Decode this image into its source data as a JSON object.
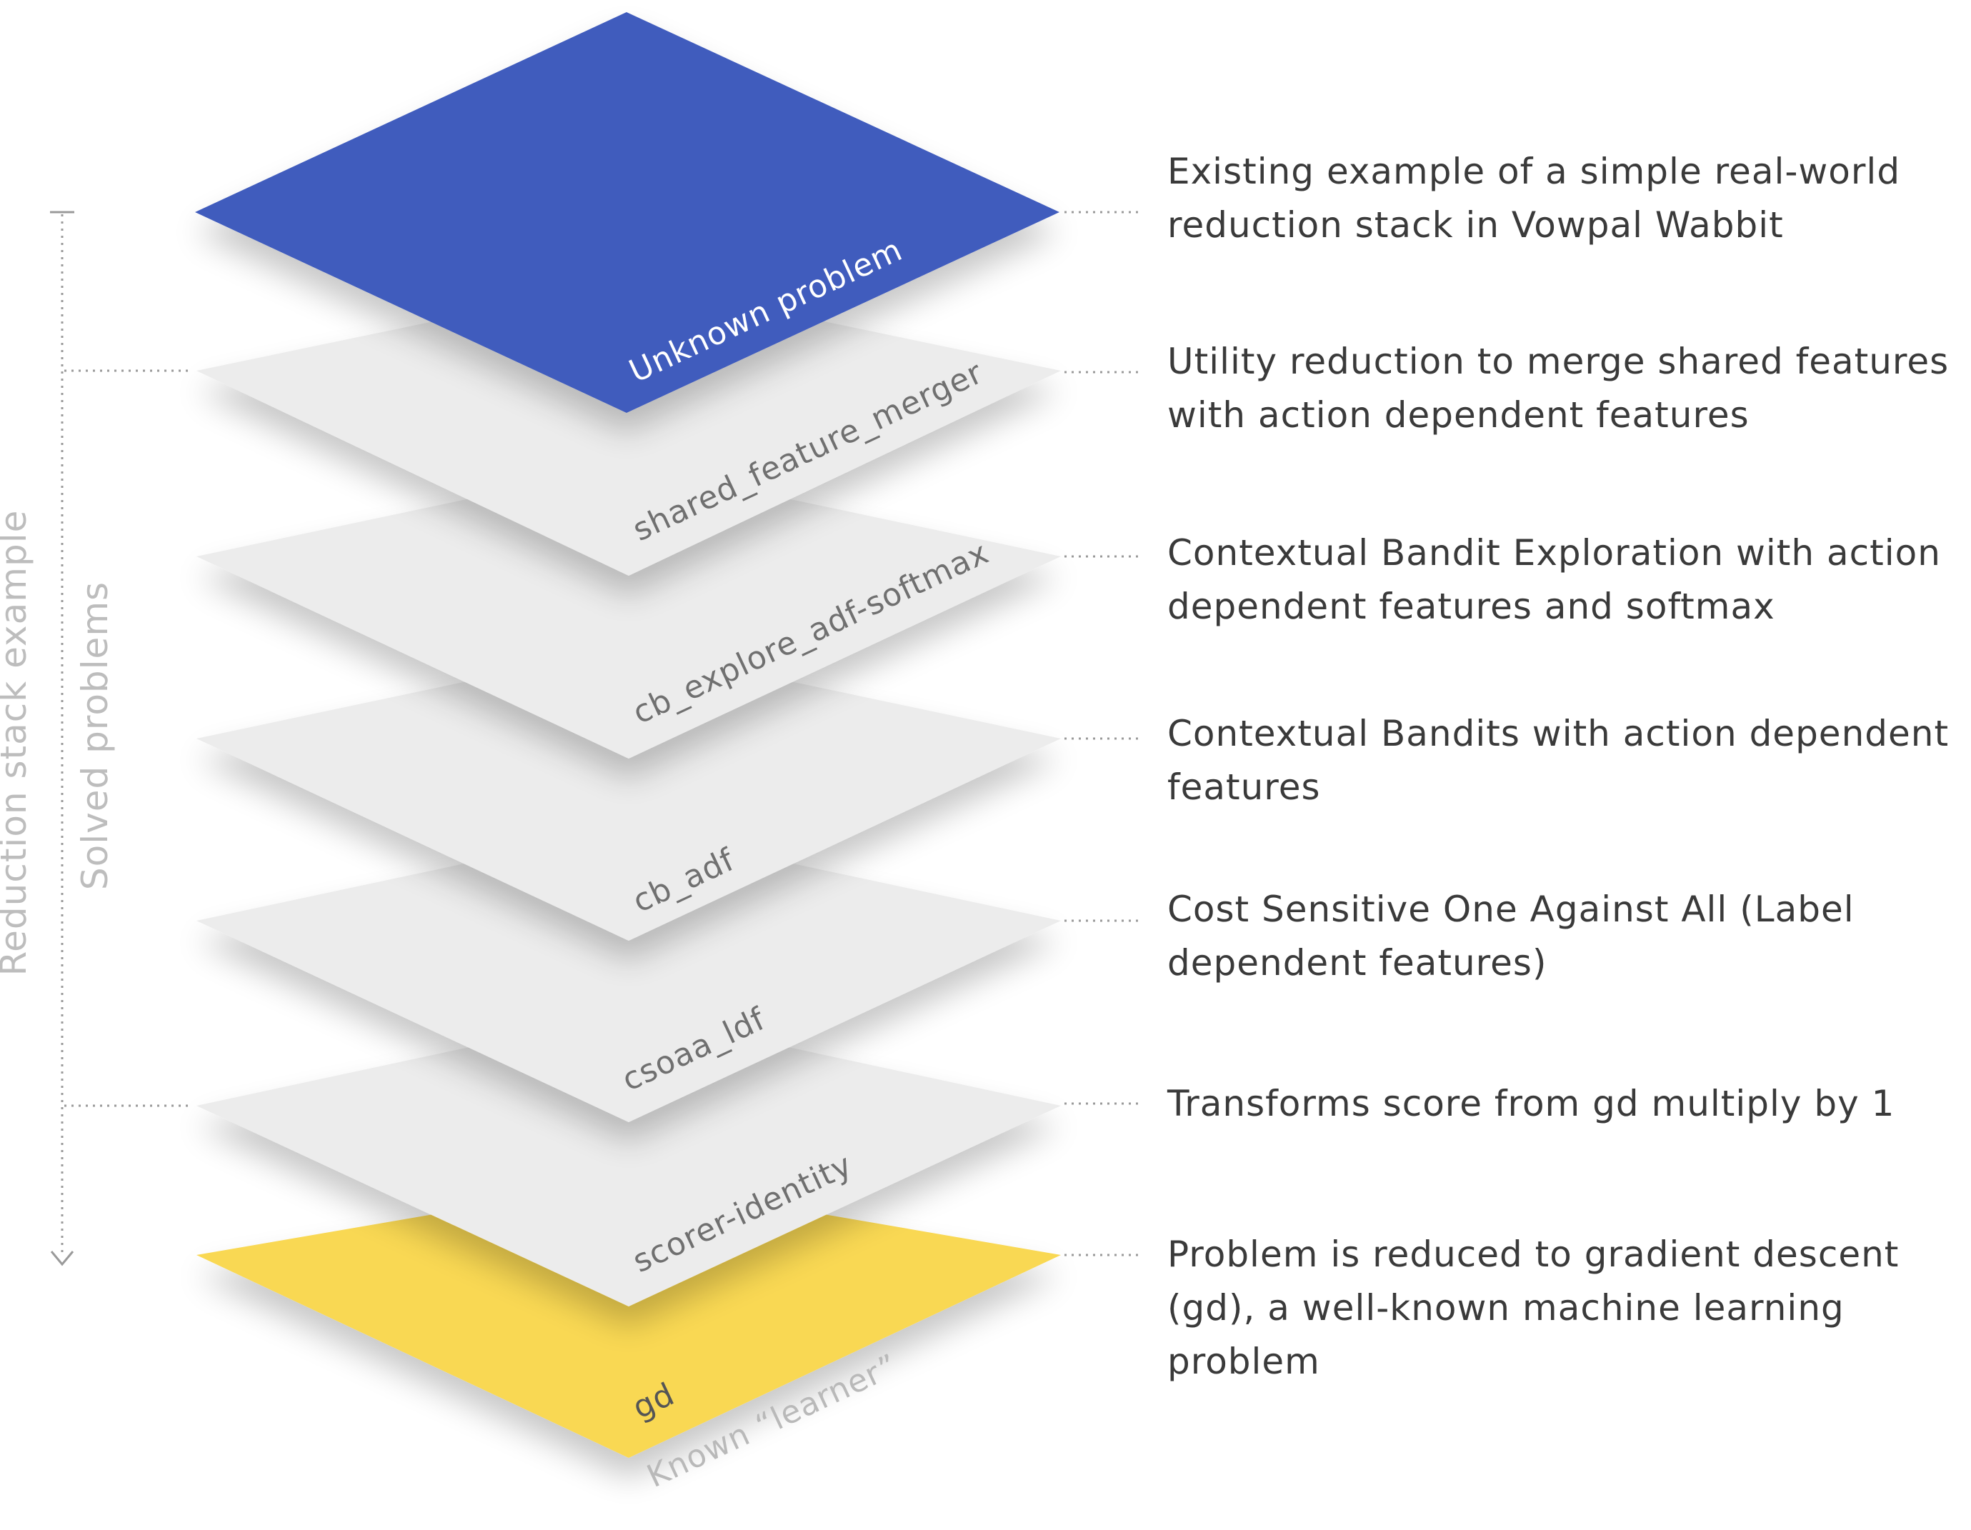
{
  "side_labels": {
    "outer": "Reduction stack example",
    "inner": "Solved problems"
  },
  "top_layer": {
    "label": "Unknown problem",
    "description": [
      "Existing example of a simple real-world",
      "reduction stack in Vowpal Wabbit"
    ],
    "color": "#405cbd"
  },
  "middle_layers": [
    {
      "label": "shared_feature_merger",
      "description": [
        "Utility reduction to merge shared features",
        "with action dependent features"
      ]
    },
    {
      "label": "cb_explore_adf-softmax",
      "description": [
        "Contextual Bandit Exploration with action",
        "dependent features and softmax"
      ]
    },
    {
      "label": "cb_adf",
      "description": [
        "Contextual Bandits with action dependent",
        "features"
      ]
    },
    {
      "label": "csoaa_ldf",
      "description": [
        "Cost Sensitive One Against All (Label",
        "dependent features)"
      ]
    },
    {
      "label": "scorer-identity",
      "description": [
        "Transforms score from gd multiply by 1"
      ]
    }
  ],
  "middle_layer_color": "#ececec",
  "bottom_layer": {
    "label": "gd",
    "sublabel": "Known “learner”",
    "description": [
      "Problem is reduced to gradient descent",
      "(gd), a well-known machine learning",
      "problem"
    ],
    "color": "#f9d853"
  }
}
